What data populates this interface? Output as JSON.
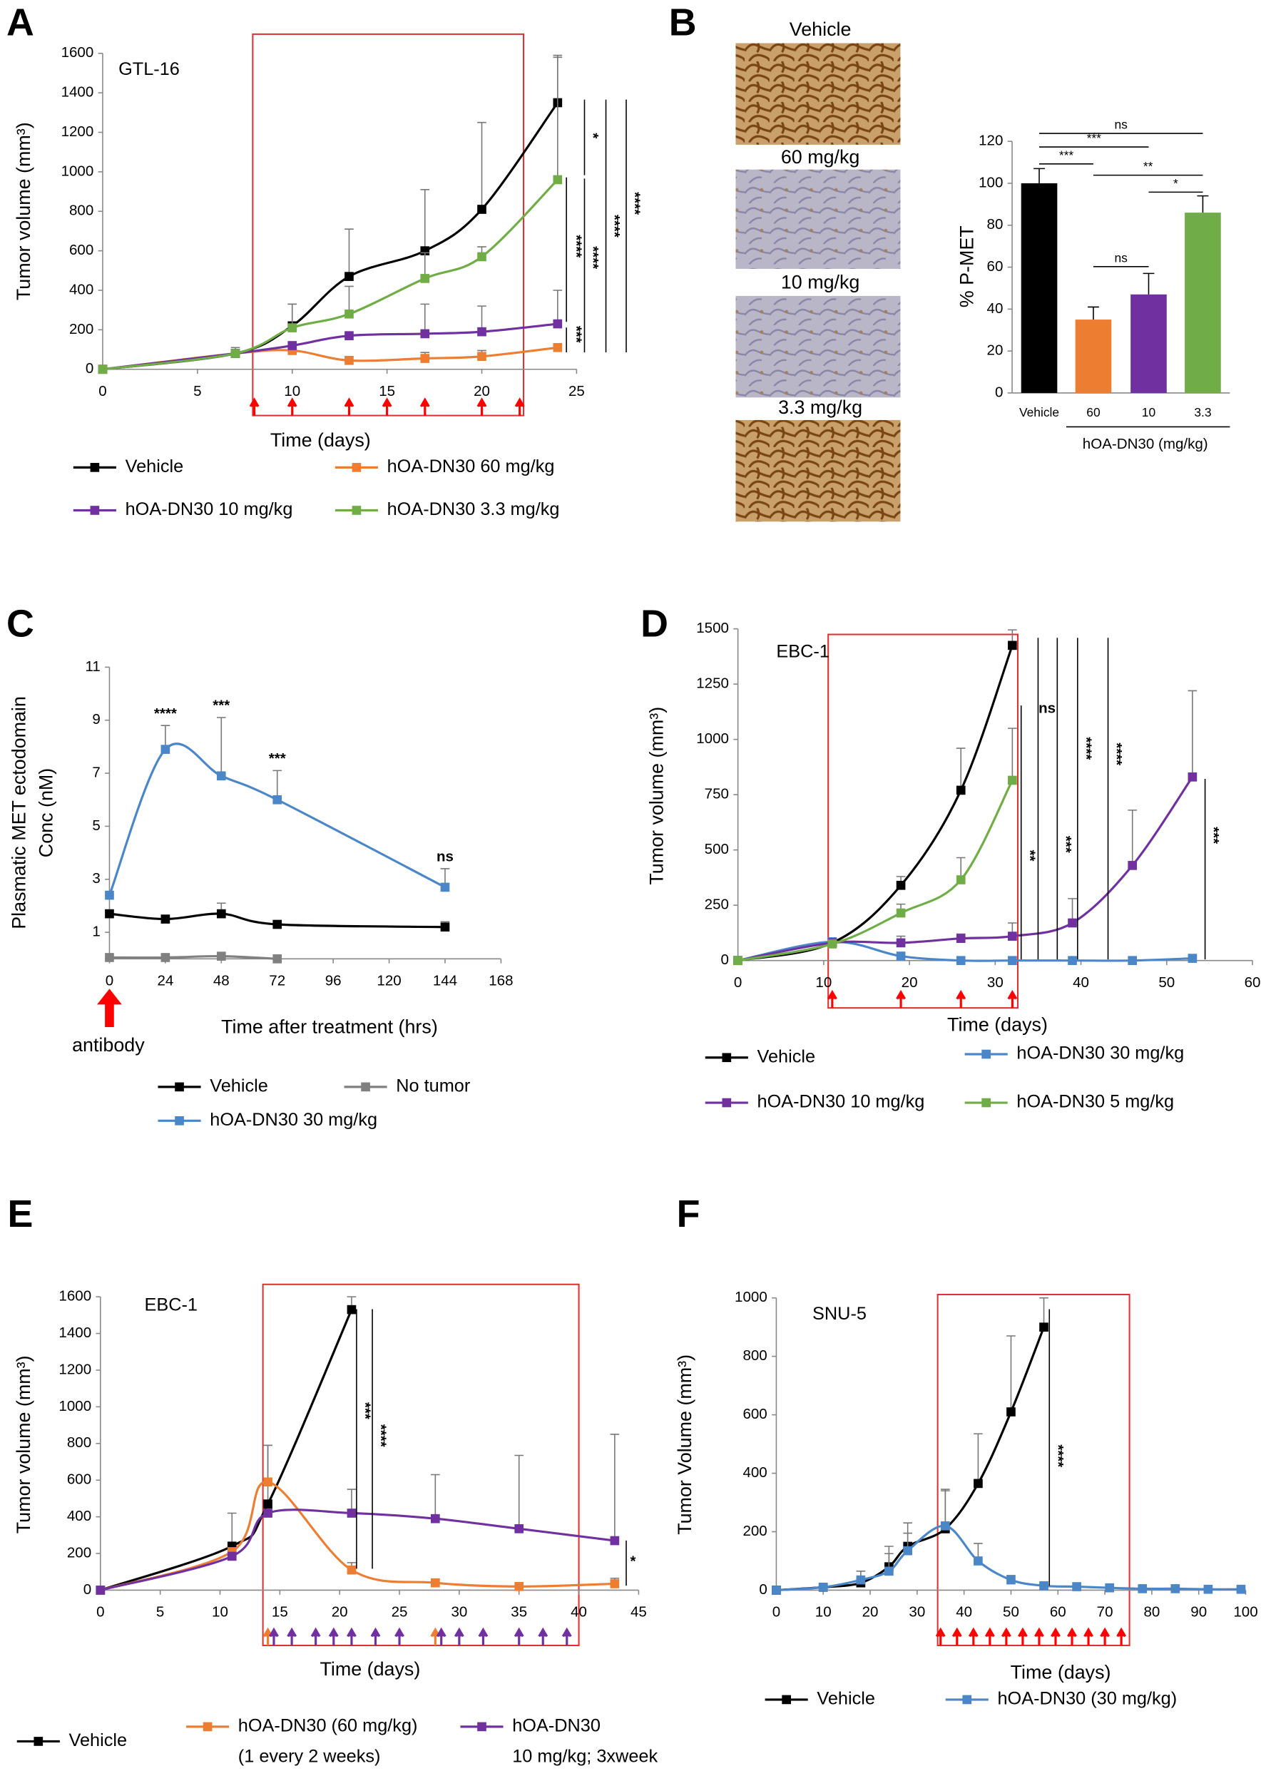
{
  "chart_data": [
    {
      "type": "line",
      "panel": "A",
      "title": "GTL-16",
      "xlabel": "Time (days)",
      "ylabel": "Tumor volume (mm³)",
      "xlim": [
        0,
        25
      ],
      "xticks": [
        0,
        5,
        10,
        15,
        20,
        25
      ],
      "ylim": [
        0,
        1600
      ],
      "yticks": [
        0,
        200,
        400,
        600,
        800,
        1000,
        1200,
        1400,
        1600
      ],
      "series": [
        {
          "name": "Vehicle",
          "color": "#000000",
          "x": [
            0,
            7,
            10,
            13,
            17,
            20,
            24
          ],
          "values": [
            0,
            80,
            220,
            470,
            600,
            810,
            1350
          ],
          "errors": [
            0,
            30,
            110,
            240,
            310,
            440,
            240
          ]
        },
        {
          "name": "hOA-DN30 60 mg/kg",
          "color": "#ed7d31",
          "x": [
            0,
            7,
            10,
            13,
            17,
            20,
            24
          ],
          "values": [
            0,
            80,
            95,
            45,
            55,
            65,
            110
          ],
          "errors": [
            0,
            0,
            10,
            20,
            30,
            30,
            15
          ]
        },
        {
          "name": "hOA-DN30 10 mg/kg",
          "color": "#7030a0",
          "x": [
            0,
            7,
            10,
            13,
            17,
            20,
            24
          ],
          "values": [
            0,
            80,
            120,
            170,
            180,
            190,
            230
          ],
          "errors": [
            0,
            0,
            0,
            0,
            150,
            130,
            170
          ]
        },
        {
          "name": "hOA-DN30 3.3 mg/kg",
          "color": "#70ad47",
          "x": [
            0,
            7,
            10,
            13,
            17,
            20,
            24
          ],
          "values": [
            0,
            80,
            210,
            280,
            460,
            570,
            960
          ],
          "errors": [
            0,
            0,
            120,
            140,
            130,
            50,
            620
          ]
        }
      ],
      "doses": [
        {
          "color": "#ff0000",
          "x": [
            8,
            10,
            13,
            15,
            17,
            20,
            22
          ]
        }
      ],
      "significance": [
        "*",
        "****",
        "****",
        "****",
        "****",
        "***"
      ]
    },
    {
      "type": "bar",
      "panel": "B",
      "images": [
        "Vehicle",
        "60 mg/kg",
        "10 mg/kg",
        "3.3 mg/kg"
      ],
      "categories": [
        "Vehicle",
        "60",
        "10",
        "3.3"
      ],
      "values": [
        100,
        35,
        47,
        86
      ],
      "errors": [
        7,
        6,
        10,
        8
      ],
      "colors": [
        "#000000",
        "#ed7d31",
        "#7030a0",
        "#70ad47"
      ],
      "ylabel": "% P-MET",
      "xlabel": "hOA-DN30 (mg/kg)",
      "ylim": [
        0,
        120
      ],
      "yticks": [
        0,
        20,
        40,
        60,
        80,
        100,
        120
      ],
      "significance": [
        "ns",
        "***",
        "***",
        "**",
        "ns",
        "*"
      ]
    },
    {
      "type": "line",
      "panel": "C",
      "xlabel": "Time after treatment (hrs)",
      "ylabel": [
        "Plasmatic  MET ectodomain",
        "Conc (nM)"
      ],
      "annotation": "antibody",
      "xlim": [
        0,
        168
      ],
      "xticks": [
        0,
        24,
        48,
        72,
        96,
        120,
        144,
        168
      ],
      "ylim": [
        0,
        11
      ],
      "yticks": [
        1,
        3,
        5,
        7,
        9,
        11
      ],
      "series": [
        {
          "name": "Vehicle",
          "color": "#000000",
          "x": [
            0,
            24,
            48,
            72,
            144
          ],
          "values": [
            1.7,
            1.5,
            1.7,
            1.3,
            1.2
          ],
          "errors": [
            0.1,
            0.1,
            0.4,
            0.1,
            0.2
          ]
        },
        {
          "name": "No tumor",
          "color": "#808080",
          "x": [
            0,
            24,
            48,
            72
          ],
          "values": [
            0.05,
            0.05,
            0.1,
            0
          ]
        },
        {
          "name": "hOA-DN30 30 mg/kg",
          "color": "#4a86c8",
          "x": [
            0,
            24,
            48,
            72,
            144
          ],
          "values": [
            2.4,
            7.9,
            6.9,
            6.0,
            2.7
          ],
          "errors": [
            0,
            0.9,
            2.2,
            1.1,
            0.7
          ]
        }
      ],
      "significance": [
        "****",
        "***",
        "***",
        "ns"
      ]
    },
    {
      "type": "line",
      "panel": "D",
      "title": "EBC-1",
      "xlabel": "Time (days)",
      "ylabel": "Tumor volume (mm³)",
      "xlim": [
        0,
        60
      ],
      "xticks": [
        0,
        10,
        20,
        30,
        40,
        50,
        60
      ],
      "ylim": [
        0,
        1500
      ],
      "yticks": [
        0,
        250,
        500,
        750,
        1000,
        1250,
        1500
      ],
      "series": [
        {
          "name": "Vehicle",
          "color": "#000000",
          "x": [
            0,
            11,
            19,
            26,
            32
          ],
          "values": [
            0,
            80,
            340,
            770,
            1425
          ],
          "errors": [
            0,
            10,
            40,
            190,
            70
          ]
        },
        {
          "name": "hOA-DN30 30 mg/kg",
          "color": "#4a86c8",
          "x": [
            0,
            11,
            19,
            26,
            32,
            39,
            46,
            53
          ],
          "values": [
            0,
            85,
            20,
            0,
            0,
            0,
            0,
            10
          ],
          "errors": [
            0,
            0,
            0,
            0,
            0,
            0,
            0,
            10
          ]
        },
        {
          "name": "hOA-DN30 10 mg/kg",
          "color": "#7030a0",
          "x": [
            0,
            11,
            19,
            26,
            32,
            39,
            46,
            53
          ],
          "values": [
            0,
            80,
            80,
            100,
            110,
            170,
            430,
            830
          ],
          "errors": [
            0,
            0,
            30,
            20,
            60,
            110,
            250,
            390
          ]
        },
        {
          "name": "hOA-DN30 5 mg/kg",
          "color": "#70ad47",
          "x": [
            0,
            11,
            19,
            26,
            32
          ],
          "values": [
            0,
            75,
            215,
            365,
            815
          ],
          "errors": [
            0,
            0,
            40,
            100,
            235
          ]
        }
      ],
      "doses": [
        {
          "color": "#ff0000",
          "x": [
            11,
            19,
            26,
            32
          ]
        }
      ],
      "significance": [
        "**",
        "ns",
        "***",
        "****",
        "****",
        "***"
      ]
    },
    {
      "type": "line",
      "panel": "E",
      "title": "EBC-1",
      "xlabel": "Time (days)",
      "ylabel": "Tumor volume (mm³)",
      "xlim": [
        0,
        45
      ],
      "xticks": [
        0,
        5,
        10,
        15,
        20,
        25,
        30,
        35,
        40,
        45
      ],
      "ylim": [
        0,
        1600
      ],
      "yticks": [
        0,
        200,
        400,
        600,
        800,
        1000,
        1200,
        1400,
        1600
      ],
      "series": [
        {
          "name": "Vehicle",
          "color": "#000000",
          "x": [
            0,
            11,
            14,
            21
          ],
          "values": [
            0,
            240,
            470,
            1530
          ],
          "errors": [
            0,
            180,
            320,
            70
          ]
        },
        {
          "name": "hOA-DN30 (60 mg/kg)",
          "name_note": "(1 every 2 weeks)",
          "color": "#ed7d31",
          "x": [
            0,
            11,
            14,
            21,
            28,
            35,
            43
          ],
          "values": [
            0,
            210,
            590,
            110,
            40,
            20,
            35
          ],
          "errors": [
            0,
            0,
            200,
            40,
            20,
            0,
            30
          ]
        },
        {
          "name": "hOA-DN30",
          "name_note": "10 mg/kg; 3xweek",
          "color": "#7030a0",
          "x": [
            0,
            11,
            14,
            21,
            28,
            35,
            43
          ],
          "values": [
            0,
            185,
            420,
            420,
            390,
            335,
            270
          ],
          "errors": [
            0,
            0,
            0,
            130,
            240,
            400,
            580
          ]
        }
      ],
      "doses": [
        {
          "color": "#ed7d31",
          "x": [
            14,
            28
          ]
        },
        {
          "color": "#7030a0",
          "x": [
            14.5,
            16,
            18,
            19.5,
            21,
            23,
            25,
            28.5,
            30,
            32,
            35,
            37,
            39
          ]
        }
      ],
      "significance": [
        "***",
        "****",
        "*"
      ]
    },
    {
      "type": "line",
      "panel": "F",
      "title": "SNU-5",
      "xlabel": "Time (days)",
      "ylabel": "Tumor Volume (mm³)",
      "xlim": [
        0,
        100
      ],
      "xticks": [
        0,
        10,
        20,
        30,
        40,
        50,
        60,
        70,
        80,
        90,
        100
      ],
      "ylim": [
        0,
        1000
      ],
      "yticks": [
        0,
        200,
        400,
        600,
        800,
        1000
      ],
      "series": [
        {
          "name": "Vehicle",
          "color": "#000000",
          "x": [
            0,
            10,
            18,
            24,
            28,
            36,
            43,
            50,
            57
          ],
          "values": [
            0,
            10,
            25,
            80,
            150,
            210,
            365,
            610,
            900
          ],
          "errors": [
            0,
            5,
            10,
            70,
            80,
            130,
            170,
            260,
            100
          ]
        },
        {
          "name": "hOA-DN30 (30 mg/kg)",
          "color": "#4a86c8",
          "x": [
            0,
            10,
            18,
            24,
            28,
            36,
            43,
            50,
            57,
            64,
            71,
            78,
            85,
            92,
            99
          ],
          "values": [
            0,
            10,
            35,
            65,
            135,
            220,
            100,
            35,
            15,
            12,
            8,
            5,
            5,
            3,
            3
          ],
          "errors": [
            0,
            5,
            30,
            60,
            60,
            125,
            60,
            15,
            5,
            0,
            0,
            0,
            0,
            0,
            0
          ]
        }
      ],
      "doses": [
        {
          "color": "#ff0000",
          "x": [
            35,
            38.5,
            42,
            45.5,
            49,
            52.5,
            56,
            59.5,
            63,
            66.5,
            70,
            73.5
          ]
        }
      ],
      "significance": [
        "****"
      ]
    }
  ]
}
